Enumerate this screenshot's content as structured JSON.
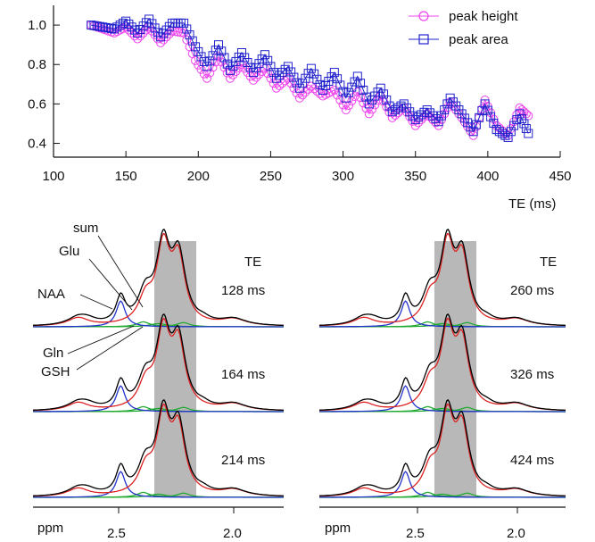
{
  "chart_data": [
    {
      "type": "line",
      "xlabel": "TE (ms)",
      "ylabel": "",
      "xlim": [
        100,
        450
      ],
      "ylim": [
        0.33,
        1.1
      ],
      "x_ticks": [
        100,
        150,
        200,
        250,
        300,
        350,
        400,
        450
      ],
      "y_ticks": [
        0.4,
        0.6,
        0.8,
        1.0
      ],
      "grid": false,
      "legend_position": "top-right",
      "colors": {
        "peak_height": "#ee44ee",
        "peak_area": "#2222cc"
      },
      "series": [
        {
          "name": "peak height",
          "marker": "circle",
          "x": [
            126,
            134,
            142,
            150,
            158,
            166,
            174,
            182,
            190,
            198,
            206,
            214,
            222,
            230,
            238,
            246,
            254,
            262,
            270,
            278,
            286,
            294,
            302,
            310,
            318,
            326,
            334,
            342,
            350,
            358,
            366,
            374,
            382,
            390,
            398,
            406,
            414,
            422,
            428
          ],
          "values": [
            1.0,
            0.98,
            0.96,
            0.99,
            0.93,
            0.99,
            0.91,
            0.97,
            0.96,
            0.82,
            0.73,
            0.84,
            0.73,
            0.8,
            0.72,
            0.78,
            0.68,
            0.73,
            0.63,
            0.69,
            0.64,
            0.67,
            0.57,
            0.66,
            0.55,
            0.64,
            0.53,
            0.58,
            0.49,
            0.55,
            0.49,
            0.61,
            0.53,
            0.44,
            0.62,
            0.49,
            0.44,
            0.58,
            0.54
          ]
        },
        {
          "name": "peak area",
          "marker": "square",
          "x": [
            126,
            134,
            142,
            150,
            158,
            166,
            174,
            182,
            190,
            198,
            206,
            214,
            222,
            230,
            238,
            246,
            254,
            262,
            270,
            278,
            286,
            294,
            302,
            310,
            318,
            326,
            334,
            342,
            350,
            358,
            366,
            374,
            382,
            390,
            398,
            406,
            414,
            422,
            428
          ],
          "values": [
            1.0,
            0.99,
            0.98,
            1.02,
            0.96,
            1.03,
            0.94,
            1.01,
            1.01,
            0.89,
            0.79,
            0.9,
            0.77,
            0.86,
            0.76,
            0.85,
            0.73,
            0.79,
            0.68,
            0.78,
            0.67,
            0.76,
            0.63,
            0.74,
            0.6,
            0.68,
            0.56,
            0.6,
            0.52,
            0.57,
            0.51,
            0.63,
            0.55,
            0.46,
            0.6,
            0.47,
            0.43,
            0.55,
            0.45
          ]
        }
      ]
    },
    {
      "type": "line",
      "xlabel": "ppm",
      "x_ticks": [
        "2.5",
        "2.0"
      ],
      "series_labels": [
        "sum",
        "Glu",
        "NAA",
        "Gln",
        "GSH"
      ],
      "header": "TE",
      "spectra_labels": [
        "128 ms",
        "164 ms",
        "214 ms"
      ],
      "shaded_band_ppm": [
        2.2,
        2.4
      ],
      "colors": {
        "sum": "#000000",
        "Glu": "#dd2222",
        "NAA": "#2233cc",
        "Gln": "#22aa33",
        "GSH": "#22aa33",
        "band": "#b8b8b8"
      }
    },
    {
      "type": "line",
      "xlabel": "ppm",
      "x_ticks": [
        "2.5",
        "2.0"
      ],
      "header": "TE",
      "spectra_labels": [
        "260 ms",
        "326 ms",
        "424 ms"
      ],
      "shaded_band_ppm": [
        2.2,
        2.4
      ],
      "colors": {
        "sum": "#000000",
        "Glu": "#dd2222",
        "NAA": "#2233cc",
        "Gln": "#22aa33",
        "GSH": "#22aa33",
        "band": "#b8b8b8"
      }
    }
  ]
}
